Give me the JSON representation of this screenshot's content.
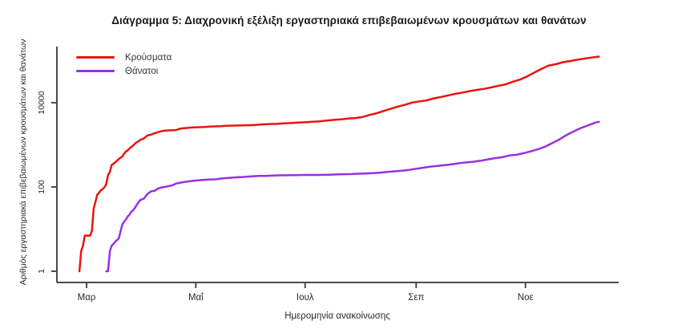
{
  "title": "Διάγραμμα 5: Διαχρονική εξέλιξη εργαστηριακά επιβεβαιωμένων κρουσμάτων και θανάτων",
  "chart_data": {
    "type": "line",
    "title": "Διάγραμμα 5: Διαχρονική εξέλιξη εργαστηριακά επιβεβαιωμένων κρουσμάτων και θανάτων",
    "xlabel": "Ημερομηνία ανακοίνωσης",
    "ylabel": "Αριθμός εργαστηριακά επιβεβαιωμένων κρουσμάτων και θανάτων",
    "y_scale": "log10",
    "ylim": [
      1,
      200000
    ],
    "grid": "off",
    "legend_position": "top-left-inside",
    "x_unit": "day offset from Mar 1 2020 (ticks = month starts)",
    "x_ticks": [
      {
        "day": 0,
        "label": "Μαρ"
      },
      {
        "day": 61,
        "label": "Μαΐ"
      },
      {
        "day": 122,
        "label": "Ιουλ"
      },
      {
        "day": 184,
        "label": "Σεπ"
      },
      {
        "day": 245,
        "label": "Νοε"
      }
    ],
    "y_ticks": [
      {
        "value": 1,
        "label": "1"
      },
      {
        "value": 100,
        "label": "100"
      },
      {
        "value": 10000,
        "label": "10000"
      }
    ],
    "series": [
      {
        "name": "Κρούσματα",
        "color": "#e8150b",
        "points": [
          [
            -4,
            1
          ],
          [
            -3,
            3
          ],
          [
            -2,
            4
          ],
          [
            -1,
            7
          ],
          [
            2,
            7
          ],
          [
            3,
            9
          ],
          [
            4,
            31
          ],
          [
            5,
            45
          ],
          [
            6,
            66
          ],
          [
            7,
            73
          ],
          [
            8,
            84
          ],
          [
            9,
            89
          ],
          [
            10,
            99
          ],
          [
            11,
            117
          ],
          [
            12,
            190
          ],
          [
            13,
            228
          ],
          [
            14,
            331
          ],
          [
            15,
            352
          ],
          [
            16,
            387
          ],
          [
            17,
            418
          ],
          [
            18,
            464
          ],
          [
            19,
            495
          ],
          [
            20,
            530
          ],
          [
            21,
            624
          ],
          [
            22,
            695
          ],
          [
            23,
            743
          ],
          [
            24,
            821
          ],
          [
            25,
            892
          ],
          [
            26,
            966
          ],
          [
            27,
            1061
          ],
          [
            28,
            1156
          ],
          [
            29,
            1212
          ],
          [
            30,
            1314
          ],
          [
            32,
            1415
          ],
          [
            34,
            1673
          ],
          [
            36,
            1755
          ],
          [
            38,
            1884
          ],
          [
            40,
            2011
          ],
          [
            42,
            2114
          ],
          [
            44,
            2170
          ],
          [
            46,
            2207
          ],
          [
            48,
            2235
          ],
          [
            50,
            2245
          ],
          [
            52,
            2408
          ],
          [
            54,
            2490
          ],
          [
            56,
            2517
          ],
          [
            58,
            2566
          ],
          [
            60,
            2591
          ],
          [
            63,
            2620
          ],
          [
            66,
            2663
          ],
          [
            69,
            2710
          ],
          [
            72,
            2744
          ],
          [
            75,
            2770
          ],
          [
            78,
            2834
          ],
          [
            81,
            2853
          ],
          [
            84,
            2876
          ],
          [
            87,
            2892
          ],
          [
            90,
            2915
          ],
          [
            94,
            2952
          ],
          [
            98,
            3058
          ],
          [
            102,
            3112
          ],
          [
            106,
            3148
          ],
          [
            110,
            3227
          ],
          [
            114,
            3287
          ],
          [
            118,
            3366
          ],
          [
            122,
            3432
          ],
          [
            126,
            3519
          ],
          [
            130,
            3622
          ],
          [
            134,
            3772
          ],
          [
            138,
            3910
          ],
          [
            142,
            4012
          ],
          [
            146,
            4193
          ],
          [
            150,
            4336
          ],
          [
            154,
            4587
          ],
          [
            158,
            5123
          ],
          [
            162,
            5623
          ],
          [
            166,
            6381
          ],
          [
            170,
            7222
          ],
          [
            174,
            8138
          ],
          [
            178,
            8987
          ],
          [
            182,
            10134
          ],
          [
            186,
            10757
          ],
          [
            190,
            11386
          ],
          [
            194,
            12734
          ],
          [
            198,
            13730
          ],
          [
            202,
            14978
          ],
          [
            206,
            16286
          ],
          [
            210,
            17444
          ],
          [
            214,
            18886
          ],
          [
            218,
            20142
          ],
          [
            222,
            21381
          ],
          [
            226,
            23060
          ],
          [
            230,
            25370
          ],
          [
            234,
            27334
          ],
          [
            238,
            31496
          ],
          [
            242,
            35510
          ],
          [
            246,
            42080
          ],
          [
            250,
            52254
          ],
          [
            254,
            63321
          ],
          [
            258,
            76403
          ],
          [
            262,
            82034
          ],
          [
            266,
            91619
          ],
          [
            270,
            97288
          ],
          [
            274,
            105271
          ],
          [
            278,
            111537
          ],
          [
            282,
            118045
          ],
          [
            286,
            124534
          ]
        ]
      },
      {
        "name": "Θάνατοι",
        "color": "#9a30e0",
        "points": [
          [
            11,
            1
          ],
          [
            12,
            1
          ],
          [
            13,
            3
          ],
          [
            14,
            4
          ],
          [
            16,
            5
          ],
          [
            18,
            6
          ],
          [
            20,
            13
          ],
          [
            21,
            15
          ],
          [
            22,
            17
          ],
          [
            23,
            20
          ],
          [
            24,
            22
          ],
          [
            25,
            26
          ],
          [
            26,
            28
          ],
          [
            27,
            32
          ],
          [
            28,
            38
          ],
          [
            29,
            43
          ],
          [
            30,
            49
          ],
          [
            32,
            53
          ],
          [
            34,
            68
          ],
          [
            36,
            79
          ],
          [
            38,
            81
          ],
          [
            40,
            92
          ],
          [
            42,
            98
          ],
          [
            44,
            101
          ],
          [
            46,
            105
          ],
          [
            48,
            110
          ],
          [
            50,
            121
          ],
          [
            52,
            125
          ],
          [
            54,
            130
          ],
          [
            56,
            134
          ],
          [
            58,
            138
          ],
          [
            60,
            140
          ],
          [
            64,
            146
          ],
          [
            68,
            150
          ],
          [
            72,
            152
          ],
          [
            76,
            160
          ],
          [
            80,
            165
          ],
          [
            84,
            170
          ],
          [
            88,
            173
          ],
          [
            92,
            179
          ],
          [
            96,
            182
          ],
          [
            100,
            183
          ],
          [
            104,
            187
          ],
          [
            108,
            189
          ],
          [
            112,
            190
          ],
          [
            116,
            191
          ],
          [
            120,
            192
          ],
          [
            124,
            193
          ],
          [
            128,
            193
          ],
          [
            132,
            194
          ],
          [
            136,
            196
          ],
          [
            140,
            199
          ],
          [
            144,
            201
          ],
          [
            148,
            203
          ],
          [
            152,
            206
          ],
          [
            156,
            210
          ],
          [
            160,
            213
          ],
          [
            164,
            219
          ],
          [
            168,
            228
          ],
          [
            172,
            235
          ],
          [
            176,
            242
          ],
          [
            180,
            254
          ],
          [
            184,
            271
          ],
          [
            188,
            287
          ],
          [
            192,
            305
          ],
          [
            196,
            315
          ],
          [
            200,
            331
          ],
          [
            204,
            344
          ],
          [
            208,
            366
          ],
          [
            212,
            383
          ],
          [
            216,
            398
          ],
          [
            220,
            420
          ],
          [
            224,
            452
          ],
          [
            228,
            482
          ],
          [
            232,
            509
          ],
          [
            236,
            559
          ],
          [
            240,
            581
          ],
          [
            244,
            635
          ],
          [
            248,
            702
          ],
          [
            252,
            784
          ],
          [
            256,
            909
          ],
          [
            260,
            1106
          ],
          [
            264,
            1347
          ],
          [
            268,
            1714
          ],
          [
            272,
            2102
          ],
          [
            276,
            2517
          ],
          [
            280,
            2902
          ],
          [
            284,
            3370
          ],
          [
            286,
            3520
          ]
        ]
      }
    ]
  }
}
